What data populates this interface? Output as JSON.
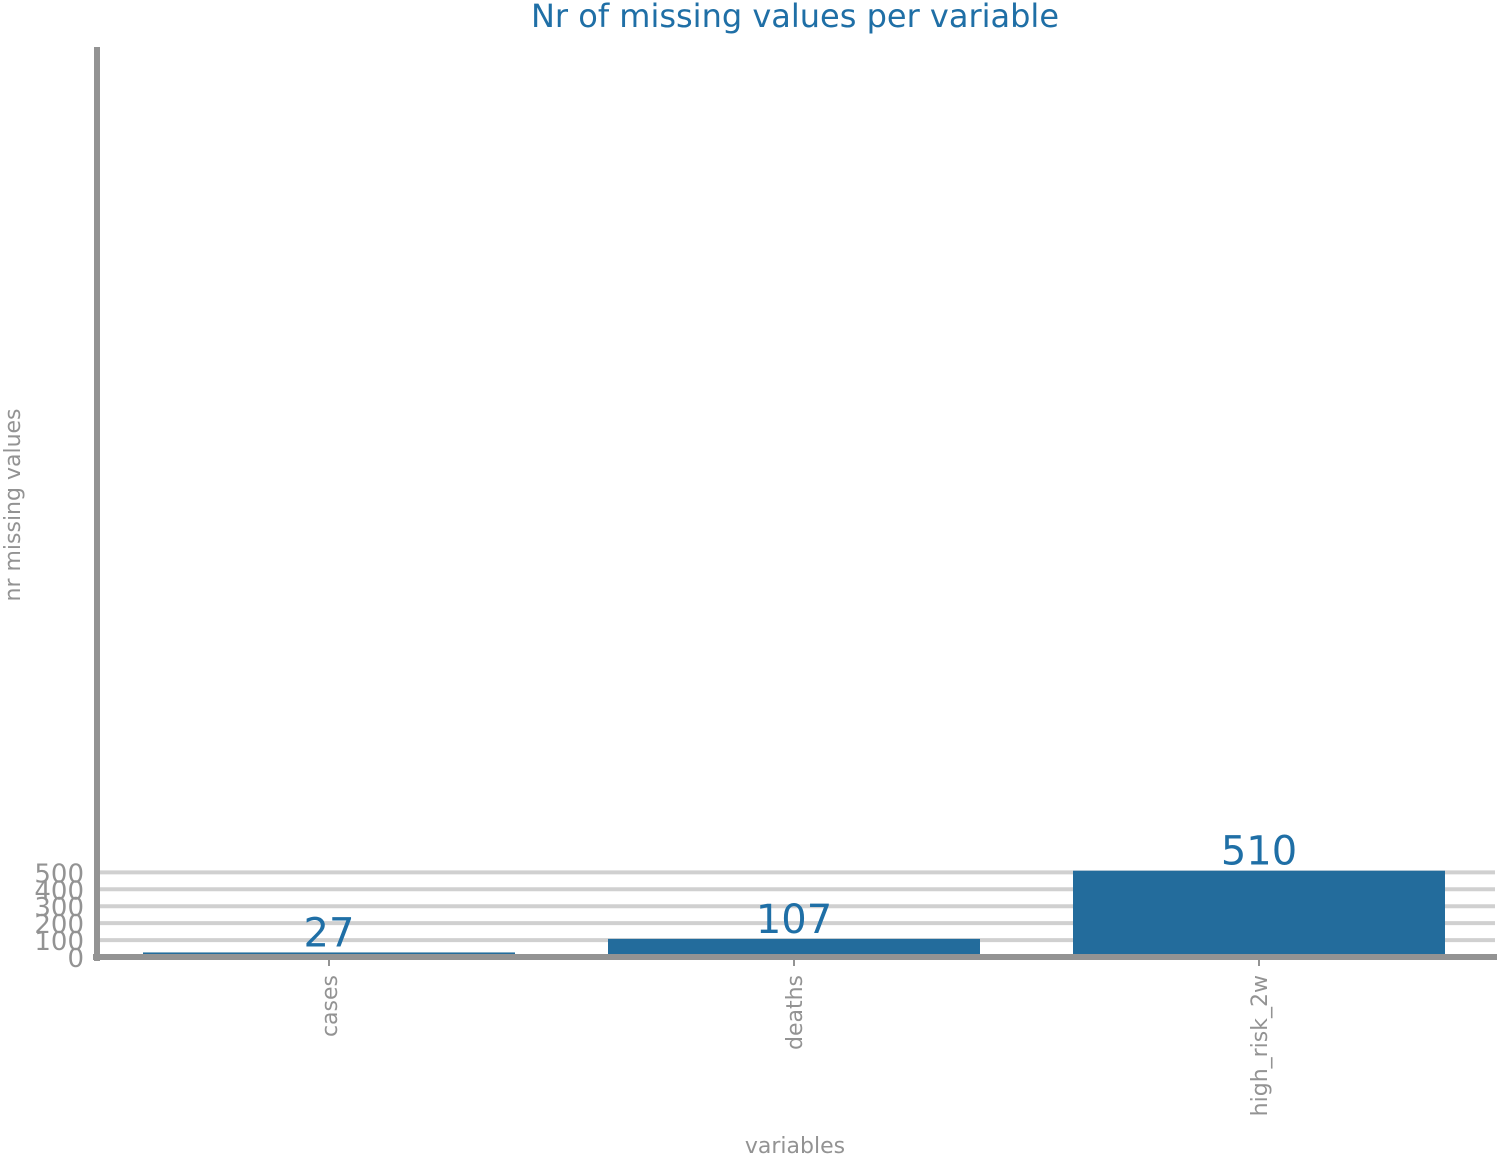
{
  "chart_data": {
    "type": "bar",
    "title": "Nr of missing values per variable",
    "xlabel": "variables",
    "ylabel": "nr missing values",
    "categories": [
      "cases",
      "deaths",
      "high_risk_2w"
    ],
    "values": [
      27,
      107,
      510
    ],
    "data_labels": [
      "27",
      "107",
      "510"
    ],
    "ylim": [
      0,
      540
    ],
    "yticks": [
      0,
      100,
      200,
      300,
      400,
      500
    ],
    "ytick_labels": [
      "0",
      "100",
      "200",
      "300",
      "400",
      "500"
    ],
    "grid": true,
    "legend": "none"
  },
  "colors": {
    "bar": "#236c9c",
    "title": "#1f6fa6",
    "data_label": "#1f6fa6",
    "axis": "#939393",
    "grid": "#d0d0d0",
    "text_muted": "#939393"
  }
}
